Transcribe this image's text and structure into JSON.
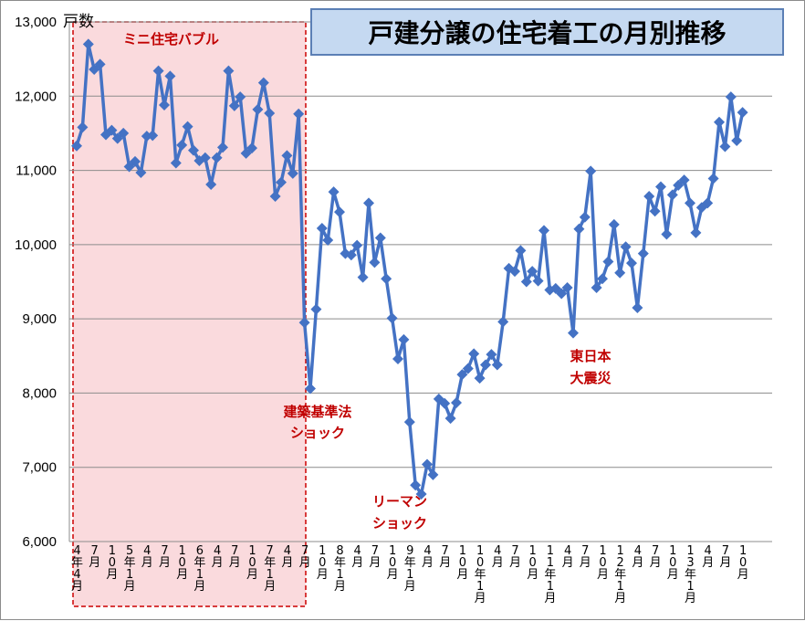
{
  "chart_data": {
    "type": "line",
    "title": "戸建分譲の住宅着工の月別推移",
    "ylabel": "戸数",
    "ylim": [
      6000,
      13000
    ],
    "yticks": [
      "6,000",
      "7,000",
      "8,000",
      "9,000",
      "10,000",
      "11,000",
      "12,000",
      "13,000"
    ],
    "grid": "horizontal",
    "legend": "none",
    "line_color": "#4472c4",
    "x_tick_labels": [
      "4年4月",
      "7月",
      "10月",
      "5年1月",
      "4月",
      "7月",
      "10月",
      "6年1月",
      "4月",
      "7月",
      "10月",
      "7年1月",
      "4月",
      "7月",
      "10月",
      "8年1月",
      "4月",
      "7月",
      "10月",
      "9年1月",
      "4月",
      "7月",
      "10月",
      "10年1月",
      "4月",
      "7月",
      "10月",
      "11年1月",
      "4月",
      "7月",
      "10月",
      "12年1月",
      "4月",
      "7月",
      "10月",
      "13年1月",
      "4月",
      "7月",
      "10月"
    ],
    "series": [
      {
        "values": [
          11330,
          11580,
          12700,
          12360,
          12430,
          11480,
          11540,
          11430,
          11500,
          11050,
          11120,
          10970,
          11460,
          11470,
          12340,
          11880,
          12270,
          11100,
          11340,
          11590,
          11270,
          11130,
          11170,
          10810,
          11170,
          11310,
          12340,
          11870,
          11990,
          11230,
          11300,
          11820,
          12180,
          11770,
          10650,
          10840,
          11200,
          10960,
          11760,
          8950,
          8060,
          9130,
          10220,
          10060,
          10710,
          10440,
          9880,
          9860,
          9990,
          9560,
          10560,
          9760,
          10090,
          9540,
          9010,
          8460,
          8720,
          7610,
          6760,
          6640,
          7040,
          6900,
          7920,
          7860,
          7660,
          7870,
          8250,
          8330,
          8530,
          8200,
          8380,
          8520,
          8380,
          8960,
          9680,
          9640,
          9920,
          9500,
          9640,
          9510,
          10190,
          9390,
          9410,
          9340,
          9420,
          8810,
          10210,
          10370,
          10990,
          9420,
          9540,
          9770,
          10270,
          9620,
          9970,
          9750,
          9150,
          9880,
          10650,
          10450,
          10780,
          10140,
          10670,
          10800,
          10870,
          10560,
          10160,
          10500,
          10560,
          10890,
          11650,
          11320,
          11990,
          11400,
          11780
        ]
      }
    ],
    "annotations": {
      "bubble": "ミニ住宅バブル",
      "building_law_1": "建築基準法",
      "building_law_2": "ショック",
      "lehman_1": "リーマン",
      "lehman_2": "ショック",
      "quake_1": "東日本",
      "quake_2": "大震災"
    }
  }
}
